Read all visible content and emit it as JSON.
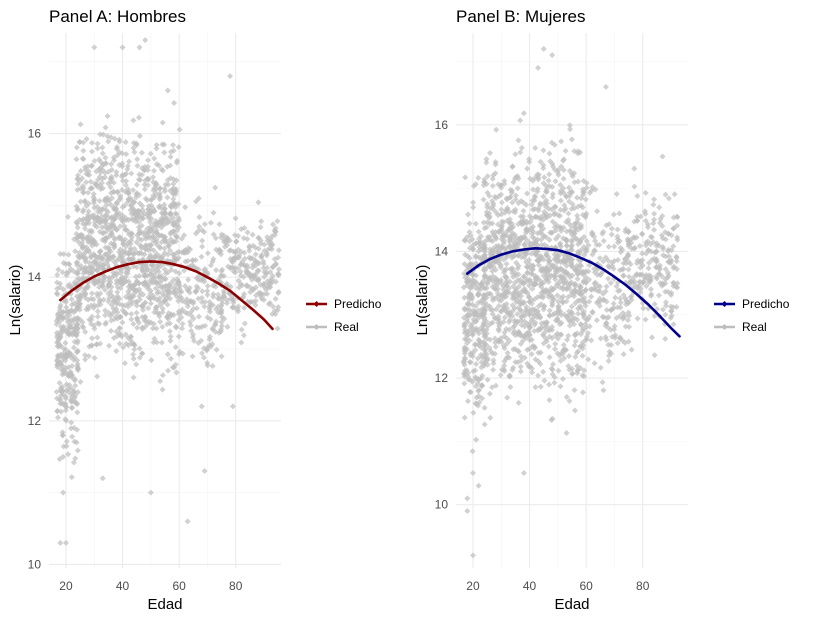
{
  "chart_data": [
    {
      "type": "scatter",
      "title": "Panel A: Hombres",
      "xlabel": "Edad",
      "ylabel": "Ln(salario)",
      "xlim": [
        14,
        96
      ],
      "ylim": [
        9.95,
        17.4
      ],
      "x_ticks": [
        20,
        40,
        60,
        80
      ],
      "y_ticks": [
        10,
        12,
        14,
        16
      ],
      "grid": true,
      "legend_position": "right",
      "series": [
        {
          "name": "Predicho",
          "kind": "line",
          "color": "#8B0000",
          "x": [
            18,
            22,
            26,
            30,
            34,
            38,
            42,
            46,
            50,
            54,
            58,
            62,
            66,
            70,
            74,
            78,
            82,
            86,
            90,
            93
          ],
          "y": [
            13.68,
            13.81,
            13.92,
            14.01,
            14.08,
            14.14,
            14.18,
            14.21,
            14.22,
            14.21,
            14.18,
            14.14,
            14.08,
            14.0,
            13.91,
            13.81,
            13.68,
            13.55,
            13.41,
            13.28
          ]
        },
        {
          "name": "Real",
          "kind": "points",
          "color": "#BEBEBE",
          "x": [
            18,
            19,
            20,
            21,
            22,
            23,
            24,
            25,
            26,
            27,
            28,
            29,
            30,
            31,
            32,
            33,
            34,
            35,
            36,
            37,
            38,
            39,
            40,
            41,
            42,
            43,
            44,
            45,
            46,
            47,
            48,
            49,
            50,
            51,
            52,
            53,
            54,
            55,
            56,
            57,
            58,
            59,
            60,
            61,
            62,
            63,
            64,
            65,
            66,
            67,
            68,
            69,
            70,
            71,
            72,
            73,
            74,
            75,
            76,
            77,
            78,
            79,
            80,
            81,
            82,
            83,
            84,
            85,
            86,
            87,
            88,
            89,
            90,
            91,
            92,
            93,
            94,
            95
          ],
          "y_ranges": [
            {
              "age_from": 17,
              "age_to": 24,
              "y_min": 11.0,
              "y_max": 15.0
            },
            {
              "age_from": 24,
              "age_to": 60,
              "y_min": 12.2,
              "y_max": 16.6
            },
            {
              "age_from": 60,
              "age_to": 75,
              "y_min": 12.2,
              "y_max": 15.5
            },
            {
              "age_from": 75,
              "age_to": 95,
              "y_min": 13.0,
              "y_max": 15.1
            }
          ],
          "outliers": [
            {
              "x": 18,
              "y": 10.3
            },
            {
              "x": 20,
              "y": 10.3
            },
            {
              "x": 50,
              "y": 11.0
            },
            {
              "x": 63,
              "y": 10.6
            },
            {
              "x": 30,
              "y": 17.2
            },
            {
              "x": 40,
              "y": 17.2
            },
            {
              "x": 46,
              "y": 17.2
            },
            {
              "x": 48,
              "y": 17.3
            },
            {
              "x": 56,
              "y": 16.6
            },
            {
              "x": 78,
              "y": 16.8
            },
            {
              "x": 69,
              "y": 11.3
            },
            {
              "x": 68,
              "y": 12.2
            },
            {
              "x": 79,
              "y": 12.2
            },
            {
              "x": 33,
              "y": 11.2
            },
            {
              "x": 19,
              "y": 11.5
            },
            {
              "x": 19,
              "y": 11.0
            }
          ]
        }
      ]
    },
    {
      "type": "scatter",
      "title": "Panel B: Mujeres",
      "xlabel": "Edad",
      "ylabel": "Ln(salario)",
      "xlim": [
        14,
        96
      ],
      "ylim": [
        9.0,
        17.45
      ],
      "x_ticks": [
        20,
        40,
        60,
        80
      ],
      "y_ticks": [
        10,
        12,
        14,
        16
      ],
      "grid": true,
      "legend_position": "right",
      "series": [
        {
          "name": "Predicho",
          "kind": "line",
          "color": "#00008B",
          "x": [
            18,
            22,
            26,
            30,
            34,
            38,
            42,
            46,
            50,
            54,
            58,
            62,
            66,
            70,
            74,
            78,
            82,
            86,
            90,
            93
          ],
          "y": [
            13.65,
            13.78,
            13.88,
            13.95,
            14.0,
            14.03,
            14.05,
            14.04,
            14.02,
            13.97,
            13.9,
            13.82,
            13.72,
            13.6,
            13.47,
            13.32,
            13.16,
            12.98,
            12.79,
            12.66
          ]
        },
        {
          "name": "Real",
          "kind": "points",
          "color": "#BEBEBE",
          "x": [
            18,
            19,
            20,
            21,
            22,
            23,
            24,
            25,
            26,
            27,
            28,
            29,
            30,
            31,
            32,
            33,
            34,
            35,
            36,
            37,
            38,
            39,
            40,
            41,
            42,
            43,
            44,
            45,
            46,
            47,
            48,
            49,
            50,
            51,
            52,
            53,
            54,
            55,
            56,
            57,
            58,
            59,
            60,
            61,
            62,
            63,
            64,
            65,
            66,
            67,
            68,
            69,
            70,
            71,
            72,
            73,
            74,
            75,
            76,
            77,
            78,
            79,
            80,
            81,
            82,
            83,
            84,
            85,
            86,
            87,
            88,
            89,
            90,
            91,
            92
          ],
          "y_ranges": [
            {
              "age_from": 17,
              "age_to": 24,
              "y_min": 10.6,
              "y_max": 15.6
            },
            {
              "age_from": 24,
              "age_to": 60,
              "y_min": 11.0,
              "y_max": 16.4
            },
            {
              "age_from": 60,
              "age_to": 75,
              "y_min": 11.5,
              "y_max": 15.5
            },
            {
              "age_from": 75,
              "age_to": 92,
              "y_min": 12.2,
              "y_max": 15.5
            }
          ],
          "outliers": [
            {
              "x": 18,
              "y": 9.9
            },
            {
              "x": 18,
              "y": 10.1
            },
            {
              "x": 20,
              "y": 9.2
            },
            {
              "x": 45,
              "y": 17.2
            },
            {
              "x": 48,
              "y": 17.1
            },
            {
              "x": 43,
              "y": 16.9
            },
            {
              "x": 67,
              "y": 16.6
            },
            {
              "x": 87,
              "y": 15.5
            },
            {
              "x": 20,
              "y": 10.5
            },
            {
              "x": 22,
              "y": 10.3
            },
            {
              "x": 38,
              "y": 10.5
            },
            {
              "x": 92,
              "y": 13.9
            },
            {
              "x": 88,
              "y": 13.0
            }
          ]
        }
      ]
    }
  ]
}
